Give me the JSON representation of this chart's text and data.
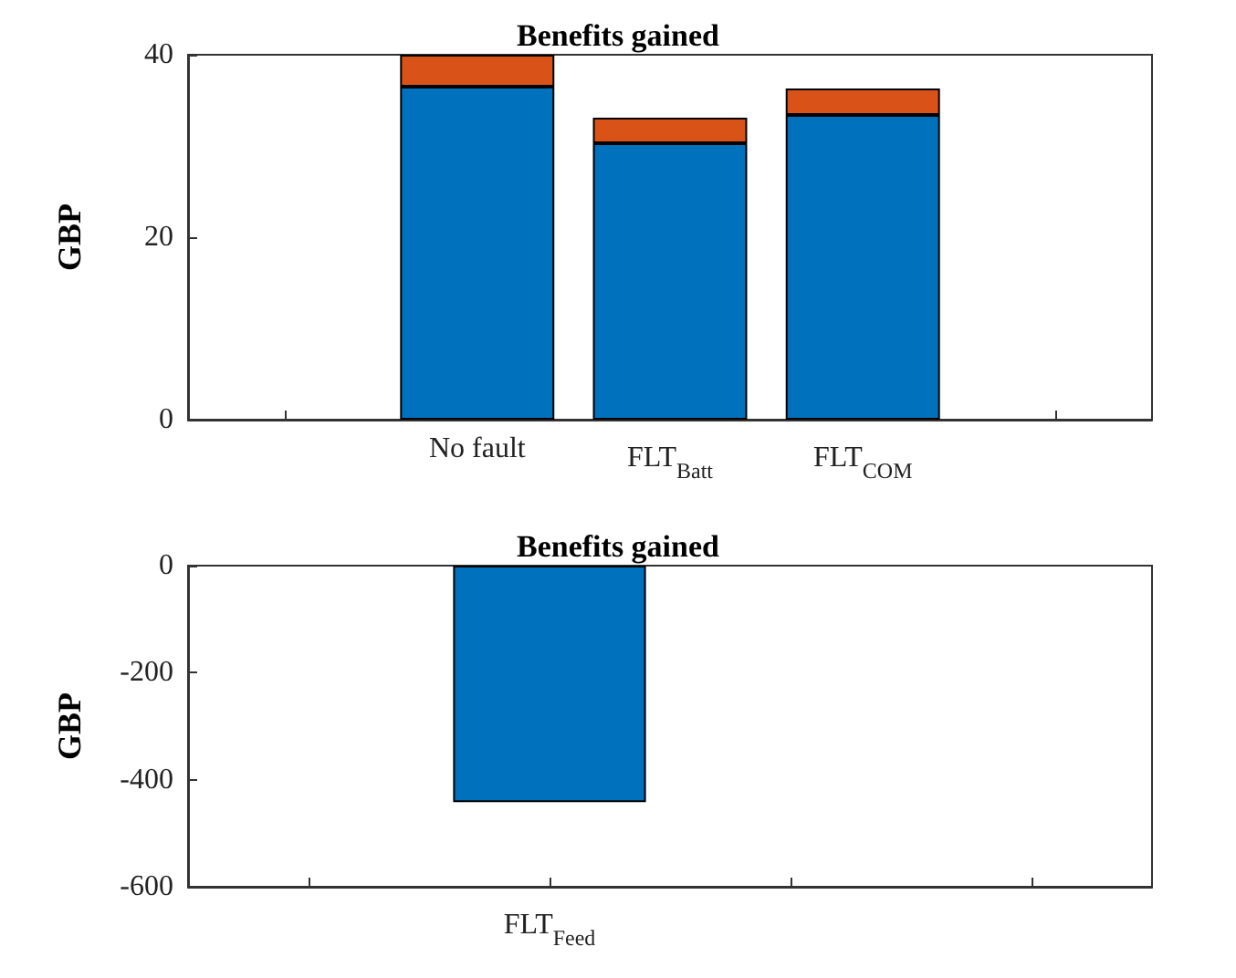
{
  "chart_data": [
    {
      "type": "bar",
      "title": "Benefits gained",
      "ylabel": "GBP",
      "stacked": true,
      "categories": [
        null,
        "No fault",
        "FLT$_{Batt}$",
        "FLT$_{COM}$",
        null
      ],
      "series": [
        {
          "color": "#0072bd",
          "values": [
            null,
            36.5,
            30.3,
            33.4,
            null
          ]
        },
        {
          "color": "#d95319",
          "values": [
            null,
            3.5,
            2.8,
            2.9,
            null
          ]
        }
      ],
      "ylim": [
        0,
        40
      ],
      "yticks": [
        0,
        20,
        40
      ],
      "grid": false
    },
    {
      "type": "bar",
      "title": "Benefits gained",
      "ylabel": "GBP",
      "categories": [
        null,
        "FLT$_{Feed}$",
        null,
        null
      ],
      "series": [
        {
          "color": "#0072bd",
          "values": [
            null,
            -442,
            null,
            null
          ]
        }
      ],
      "ylim": [
        -600,
        0
      ],
      "yticks": [
        -600,
        -400,
        -200,
        0
      ],
      "grid": false
    }
  ]
}
